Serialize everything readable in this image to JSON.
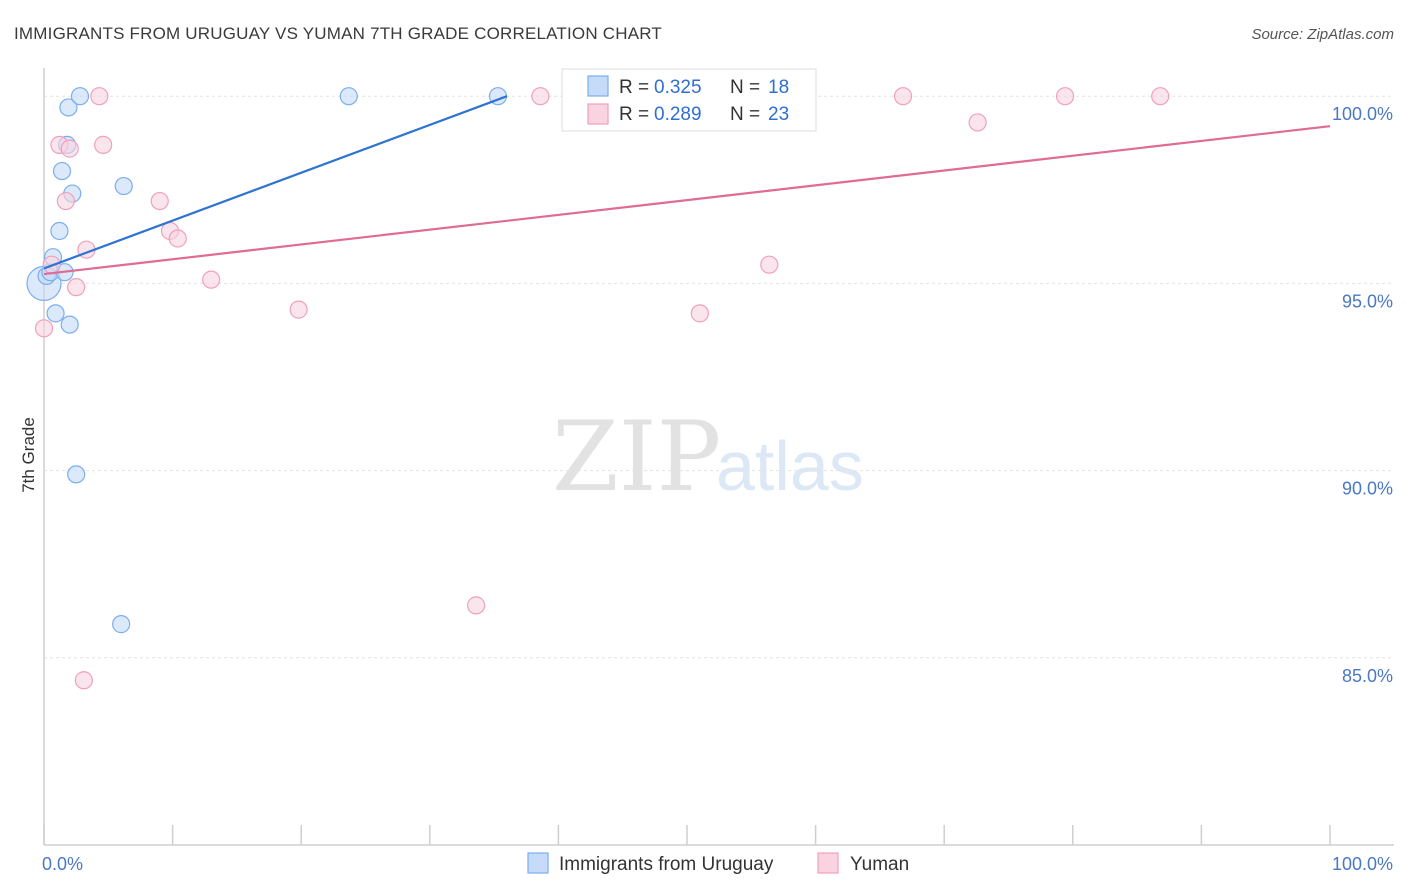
{
  "chart_data": {
    "type": "scatter",
    "title": "IMMIGRANTS FROM URUGUAY VS YUMAN 7TH GRADE CORRELATION CHART",
    "source": "Source: ZipAtlas.com",
    "ylabel": "7th Grade",
    "xlabel": "",
    "xlim": [
      0,
      100
    ],
    "ylim": [
      80.0,
      100.7
    ],
    "x_tick_labels": [
      "0.0%",
      "100.0%"
    ],
    "y_ticks": [
      {
        "value": 100,
        "label": "100.0%"
      },
      {
        "value": 95,
        "label": "95.0%"
      },
      {
        "value": 90,
        "label": "90.0%"
      },
      {
        "value": 85,
        "label": "85.0%"
      }
    ],
    "watermark": {
      "zip": "ZIP",
      "atlas": "atlas"
    },
    "legend": [
      {
        "r_label": "R =",
        "r_value": "0.325",
        "n_label": "N =",
        "n_value": "18"
      },
      {
        "r_label": "R =",
        "r_value": "0.289",
        "n_label": "N =",
        "n_value": "23"
      }
    ],
    "series": [
      {
        "name": "Immigrants from Uruguay",
        "color": "#7aaef0",
        "fill": "#c5dbf8",
        "line_color": "#2e74d0",
        "trend": {
          "x": [
            0,
            36.0
          ],
          "y": [
            95.4,
            100.0
          ]
        },
        "points": [
          {
            "x": 0.0,
            "y": 95.0,
            "big": true
          },
          {
            "x": 0.2,
            "y": 95.2
          },
          {
            "x": 0.5,
            "y": 95.3
          },
          {
            "x": 0.7,
            "y": 95.7
          },
          {
            "x": 0.9,
            "y": 94.2
          },
          {
            "x": 1.2,
            "y": 96.4
          },
          {
            "x": 1.4,
            "y": 98.0
          },
          {
            "x": 1.6,
            "y": 95.3
          },
          {
            "x": 1.8,
            "y": 98.7
          },
          {
            "x": 1.9,
            "y": 99.7
          },
          {
            "x": 2.0,
            "y": 93.9
          },
          {
            "x": 2.2,
            "y": 97.4
          },
          {
            "x": 2.5,
            "y": 89.9
          },
          {
            "x": 2.8,
            "y": 100.0
          },
          {
            "x": 6.0,
            "y": 85.9
          },
          {
            "x": 6.2,
            "y": 97.6
          },
          {
            "x": 23.7,
            "y": 100.0
          },
          {
            "x": 35.3,
            "y": 100.0
          }
        ]
      },
      {
        "name": "Yuman",
        "color": "#f0a0bc",
        "fill": "#f9d3e0",
        "line_color": "#e06b93",
        "trend": {
          "x": [
            0,
            100
          ],
          "y": [
            95.25,
            99.2
          ]
        },
        "points": [
          {
            "x": 0.0,
            "y": 93.8
          },
          {
            "x": 0.6,
            "y": 95.5
          },
          {
            "x": 1.2,
            "y": 98.7
          },
          {
            "x": 1.7,
            "y": 97.2
          },
          {
            "x": 2.0,
            "y": 98.6
          },
          {
            "x": 2.5,
            "y": 94.9
          },
          {
            "x": 3.1,
            "y": 84.4
          },
          {
            "x": 3.3,
            "y": 95.9
          },
          {
            "x": 4.3,
            "y": 100.0
          },
          {
            "x": 4.6,
            "y": 98.7
          },
          {
            "x": 9.0,
            "y": 97.2
          },
          {
            "x": 9.8,
            "y": 96.4
          },
          {
            "x": 10.4,
            "y": 96.2
          },
          {
            "x": 13.0,
            "y": 95.1
          },
          {
            "x": 19.8,
            "y": 94.3
          },
          {
            "x": 33.6,
            "y": 86.4
          },
          {
            "x": 38.6,
            "y": 100.0
          },
          {
            "x": 51.0,
            "y": 94.2
          },
          {
            "x": 56.4,
            "y": 95.5
          },
          {
            "x": 66.8,
            "y": 100.0
          },
          {
            "x": 72.6,
            "y": 99.3
          },
          {
            "x": 79.4,
            "y": 100.0
          },
          {
            "x": 86.8,
            "y": 100.0
          }
        ]
      }
    ]
  }
}
